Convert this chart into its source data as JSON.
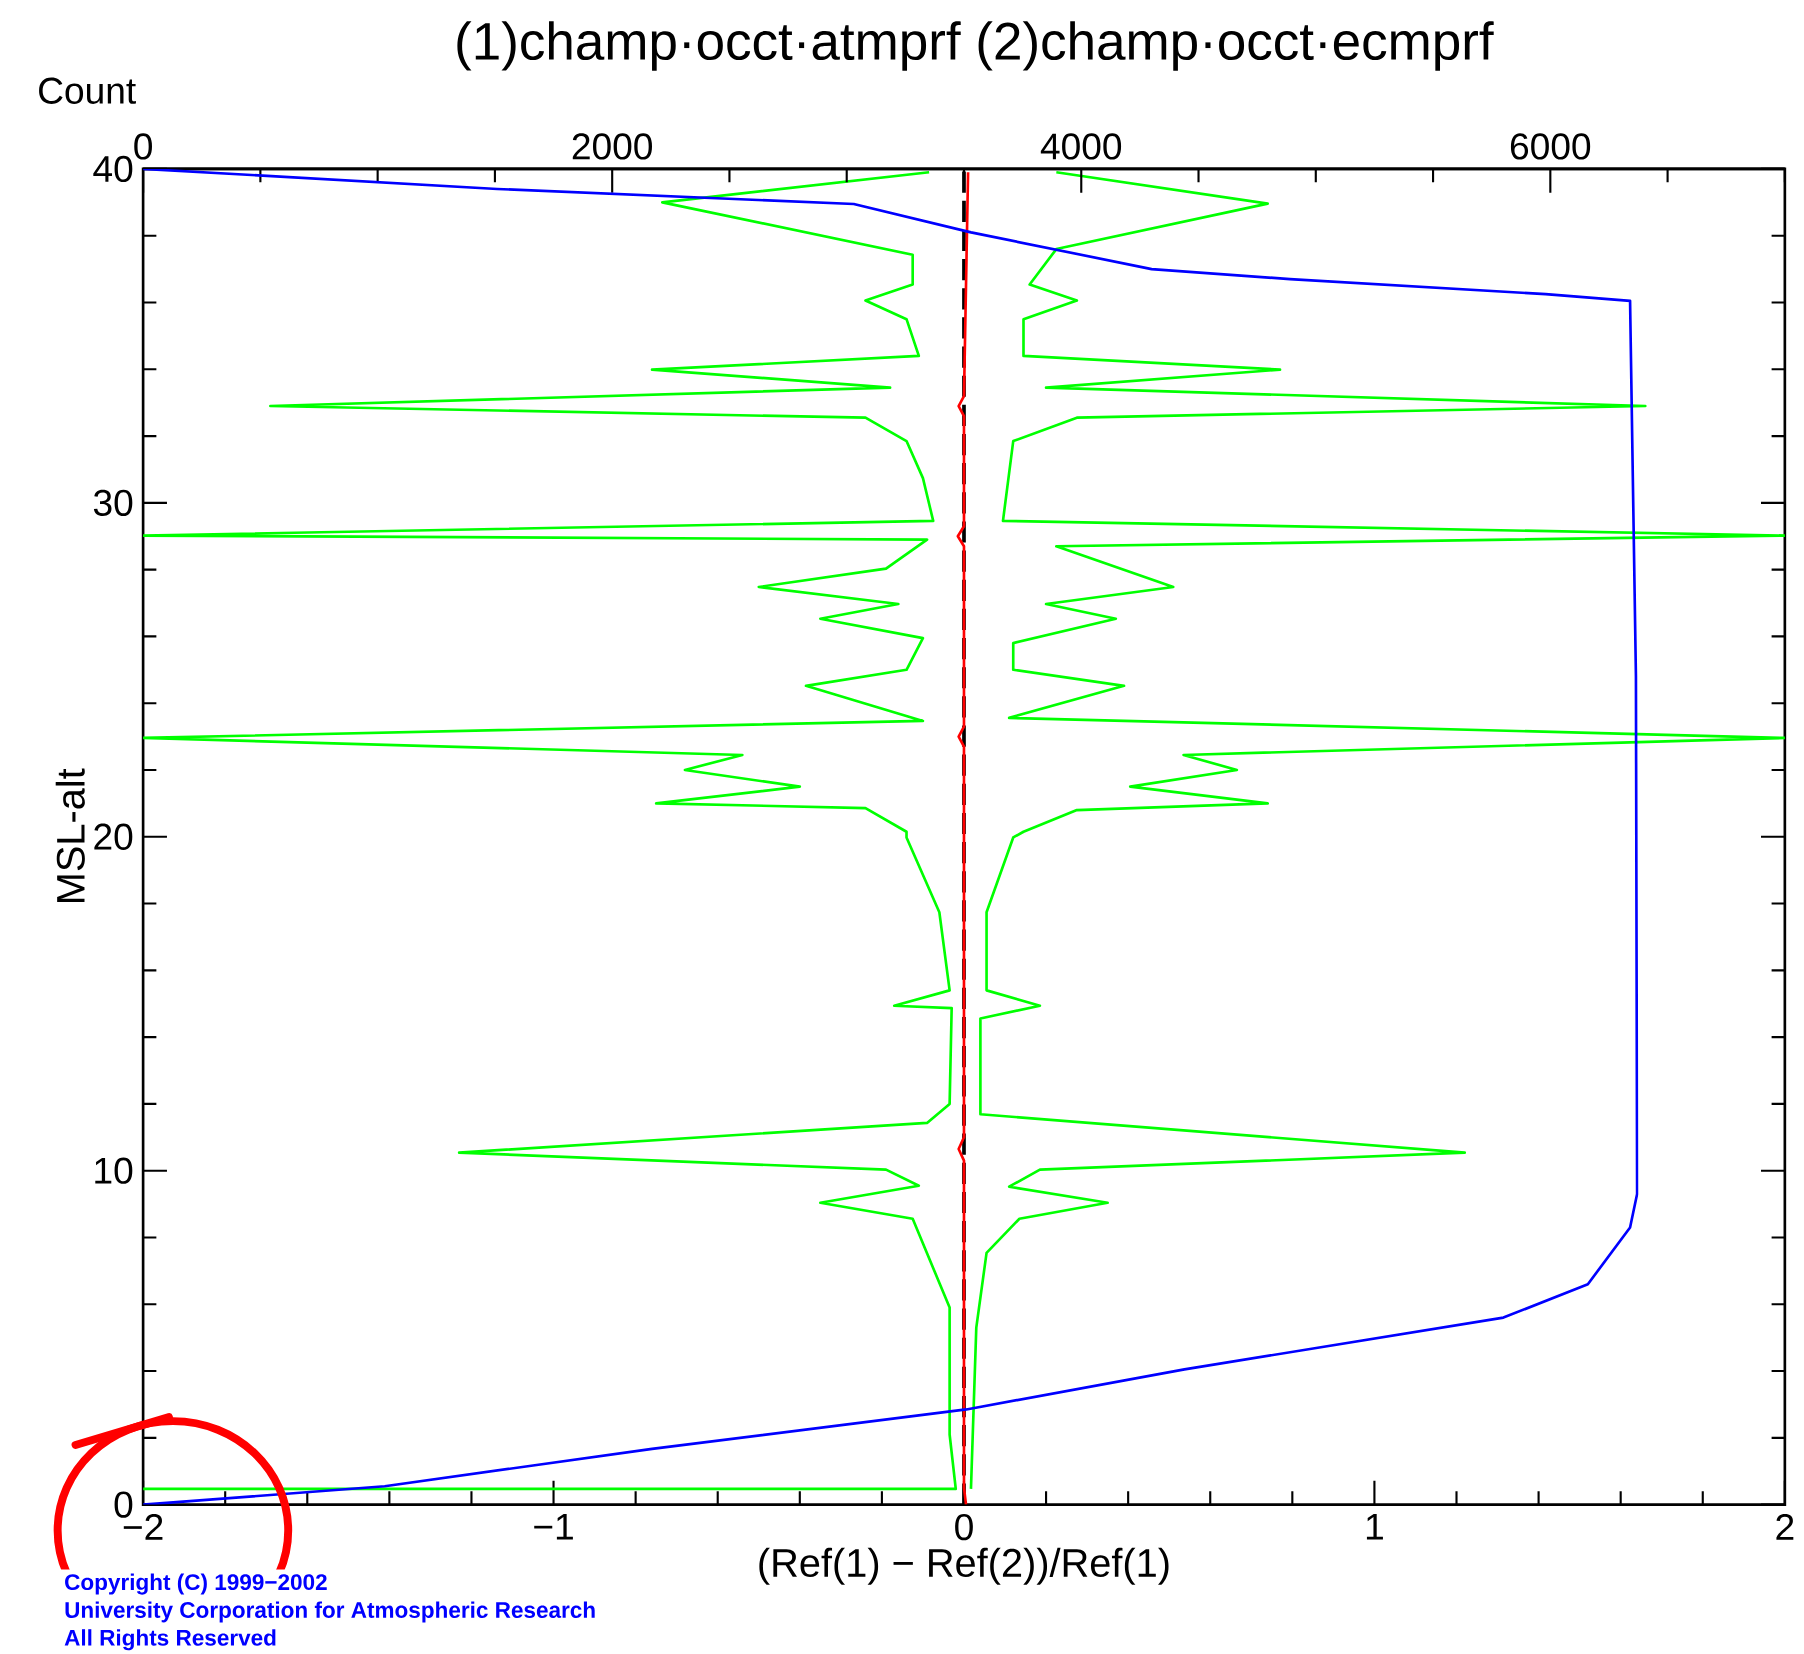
{
  "chart_data": {
    "type": "line",
    "title": "(1)champ·occt·atmprf (2)champ·occt·ecmprf",
    "xlabel": "(Ref(1) − Ref(2))/Ref(1)",
    "ylabel": "MSL-alt",
    "x2label": "Count",
    "annotations": [
      "Copyright (C) 1999−2002",
      "University Corporation for Atmospheric Research",
      "All Rights Reserved"
    ],
    "xlim": [
      -2,
      2
    ],
    "ylim": [
      0,
      40
    ],
    "x2lim": [
      0,
      7000
    ],
    "xticks": [
      {
        "value": -2,
        "label": "−2"
      },
      {
        "value": -1.8,
        "label": null
      },
      {
        "value": -1.6,
        "label": null
      },
      {
        "value": -1.4,
        "label": null
      },
      {
        "value": -1.2,
        "label": null
      },
      {
        "value": -1,
        "label": "−1"
      },
      {
        "value": -0.8,
        "label": null
      },
      {
        "value": -0.6,
        "label": null
      },
      {
        "value": -0.4,
        "label": null
      },
      {
        "value": -0.2,
        "label": null
      },
      0,
      {
        "value": 0.2,
        "label": null
      },
      {
        "value": 0.4,
        "label": null
      },
      {
        "value": 0.6,
        "label": null
      },
      {
        "value": 0.8,
        "label": null
      },
      1,
      {
        "value": 1.2,
        "label": null
      },
      {
        "value": 1.4,
        "label": null
      },
      {
        "value": 1.6,
        "label": null
      },
      {
        "value": 1.8,
        "label": null
      },
      2
    ],
    "yticks": [
      0,
      {
        "value": 2,
        "label": null
      },
      {
        "value": 4,
        "label": null
      },
      {
        "value": 6,
        "label": null
      },
      {
        "value": 8,
        "label": null
      },
      10,
      {
        "value": 12,
        "label": null
      },
      {
        "value": 14,
        "label": null
      },
      {
        "value": 16,
        "label": null
      },
      {
        "value": 18,
        "label": null
      },
      20,
      {
        "value": 22,
        "label": null
      },
      {
        "value": 24,
        "label": null
      },
      {
        "value": 26,
        "label": null
      },
      {
        "value": 28,
        "label": null
      },
      30,
      {
        "value": 32,
        "label": null
      },
      {
        "value": 34,
        "label": null
      },
      {
        "value": 36,
        "label": null
      },
      {
        "value": 38,
        "label": null
      },
      40
    ],
    "x2ticks": [
      0,
      {
        "value": 500,
        "label": null
      },
      {
        "value": 1000,
        "label": null
      },
      {
        "value": 1500,
        "label": null
      },
      2000,
      {
        "value": 2500,
        "label": null
      },
      {
        "value": 3000,
        "label": null
      },
      {
        "value": 3500,
        "label": null
      },
      4000,
      {
        "value": 4500,
        "label": null
      },
      {
        "value": 5000,
        "label": null
      },
      {
        "value": 5500,
        "label": null
      },
      6000,
      {
        "value": 6500,
        "label": null
      },
      {
        "value": 7000,
        "label": null
      }
    ],
    "ref_lines": [
      {
        "axis": "x",
        "value": 0,
        "color": "#000000",
        "line_style": "dashed"
      }
    ],
    "series": [
      {
        "color": "#00ff00",
        "x": [
          -2.0,
          -0.02,
          -0.035,
          -0.035,
          -0.125,
          -0.35,
          -0.11,
          -0.19,
          -1.23,
          -0.09,
          -0.035,
          -0.03,
          -0.17,
          -0.035,
          -0.06,
          -0.14,
          -0.14,
          -0.24,
          -0.75,
          -0.4,
          -0.68,
          -0.54,
          -2.0,
          -0.1,
          -0.385,
          -0.14,
          -0.1,
          -0.35,
          -0.16,
          -0.5,
          -0.19,
          -0.09,
          -2.0,
          -0.075,
          -0.1,
          -0.14,
          -0.24,
          -1.69,
          -0.18,
          -0.76,
          -0.11,
          -0.14,
          -0.24,
          -0.125,
          -0.125,
          -0.735,
          -0.085
        ],
        "values": [
          0.47,
          0.47,
          2.1,
          5.9,
          8.56,
          9.04,
          9.55,
          10.03,
          10.54,
          11.43,
          12.0,
          14.87,
          14.94,
          15.4,
          17.74,
          19.98,
          20.15,
          20.86,
          21.0,
          21.5,
          22.0,
          22.45,
          22.96,
          23.47,
          24.52,
          25.0,
          25.95,
          26.53,
          26.97,
          27.48,
          28.03,
          28.9,
          29.02,
          29.46,
          30.74,
          31.85,
          32.55,
          32.9,
          33.45,
          33.99,
          34.4,
          35.5,
          36.06,
          36.54,
          37.43,
          39.0,
          39.9
        ]
      },
      {
        "color": "#00ff00",
        "x": [
          0.017,
          0.03,
          0.055,
          0.135,
          0.35,
          0.11,
          0.185,
          1.22,
          0.04,
          0.04,
          0.185,
          0.055,
          0.055,
          0.12,
          0.145,
          0.275,
          0.74,
          0.405,
          0.665,
          0.535,
          2.0,
          0.11,
          0.39,
          0.12,
          0.12,
          0.37,
          0.2,
          0.51,
          0.225,
          2.0,
          0.095,
          0.12,
          0.275,
          1.66,
          0.2,
          0.77,
          0.145,
          0.145,
          0.275,
          0.16,
          0.225,
          0.74,
          0.225
        ],
        "values": [
          0.47,
          5.3,
          7.54,
          8.56,
          9.04,
          9.52,
          10.03,
          10.54,
          11.69,
          14.56,
          14.94,
          15.4,
          17.74,
          19.98,
          20.15,
          20.8,
          21.0,
          21.5,
          22.0,
          22.45,
          22.96,
          23.56,
          24.52,
          25.0,
          25.8,
          26.53,
          26.97,
          27.48,
          28.7,
          29.02,
          29.46,
          31.85,
          32.55,
          32.9,
          33.45,
          33.99,
          34.4,
          35.5,
          36.06,
          36.54,
          37.6,
          38.96,
          39.9
        ]
      },
      {
        "color": "#ff0000",
        "x": [
          0.005,
          0.0,
          0.0,
          -0.013,
          0.0,
          0.0,
          -0.013,
          0.0,
          0.0,
          -0.015,
          0.0,
          0.0,
          -0.013,
          0.0,
          0.01
        ],
        "values": [
          0,
          0.5,
          10.3,
          10.65,
          11.0,
          22.7,
          23.0,
          23.3,
          28.7,
          29.0,
          29.3,
          32.6,
          32.9,
          33.2,
          39.9
        ]
      },
      {
        "color": "#0000ff",
        "axis": "x2",
        "x": [
          0,
          100,
          1030,
          2170,
          3510,
          4440,
          5800,
          6160,
          6340,
          6370,
          6365,
          6340,
          5980,
          4890,
          4300,
          3530,
          3030,
          1510,
          510,
          0
        ],
        "values": [
          0,
          0.05,
          0.55,
          1.67,
          2.85,
          4.05,
          5.6,
          6.6,
          8.3,
          9.3,
          24.8,
          36.05,
          36.25,
          36.7,
          37.0,
          38.1,
          38.95,
          39.4,
          39.8,
          40
        ]
      }
    ]
  }
}
